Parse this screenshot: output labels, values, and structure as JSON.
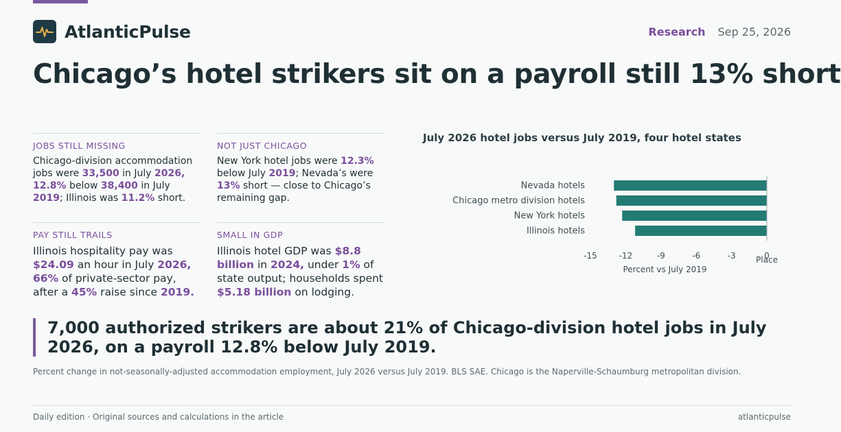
{
  "brand": {
    "name": "AtlanticPulse",
    "logo_icon": "pulse-icon"
  },
  "header": {
    "section": "Research",
    "date": "Sep 25, 2026"
  },
  "headline": "Chicago’s hotel strikers sit on a payroll still 13% short",
  "facts": [
    {
      "label": "JOBS STILL MISSING",
      "parts": [
        {
          "t": "Chicago-division accommodation jobs were "
        },
        {
          "t": "33,500",
          "h": true
        },
        {
          "t": " in July "
        },
        {
          "t": "2026,",
          "h": true
        },
        {
          "t": " "
        },
        {
          "t": "12.8%",
          "h": true
        },
        {
          "t": " below "
        },
        {
          "t": "38,400",
          "h": true
        },
        {
          "t": " in July "
        },
        {
          "t": "2019",
          "h": true
        },
        {
          "t": "; Illinois was "
        },
        {
          "t": "11.2%",
          "h": true
        },
        {
          "t": " short."
        }
      ]
    },
    {
      "label": "NOT JUST CHICAGO",
      "parts": [
        {
          "t": "New York hotel jobs were "
        },
        {
          "t": "12.3%",
          "h": true
        },
        {
          "t": " below July "
        },
        {
          "t": "2019",
          "h": true
        },
        {
          "t": "; Nevada’s were "
        },
        {
          "t": "13%",
          "h": true
        },
        {
          "t": " short — close to Chicago’s remaining gap."
        }
      ]
    },
    {
      "label": "PAY STILL TRAILS",
      "parts": [
        {
          "t": "Illinois hospitality pay was "
        },
        {
          "t": "$24.09",
          "h": true
        },
        {
          "t": " an hour in July "
        },
        {
          "t": "2026,",
          "h": true
        },
        {
          "t": " "
        },
        {
          "t": "66%",
          "h": true
        },
        {
          "t": " of private-sector pay, after a "
        },
        {
          "t": "45%",
          "h": true
        },
        {
          "t": " raise since "
        },
        {
          "t": "2019.",
          "h": true
        }
      ]
    },
    {
      "label": "SMALL IN GDP",
      "parts": [
        {
          "t": "Illinois hotel GDP was "
        },
        {
          "t": "$8.8 billion",
          "h": true
        },
        {
          "t": " in "
        },
        {
          "t": "2024,",
          "h": true
        },
        {
          "t": " under "
        },
        {
          "t": "1%",
          "h": true
        },
        {
          "t": " of state output; households spent "
        },
        {
          "t": "$5.18 billion",
          "h": true
        },
        {
          "t": " on lodging."
        }
      ]
    }
  ],
  "chart_data": {
    "type": "bar",
    "orientation": "horizontal",
    "title": "July 2026 hotel jobs versus July 2019, four hotel states",
    "categories": [
      "Nevada hotels",
      "Chicago metro division hotels",
      "New York hotels",
      "Illinois hotels"
    ],
    "values": [
      -13.0,
      -12.8,
      -12.3,
      -11.2
    ],
    "xlabel": "Percent vs July 2019",
    "ylabel": "Place",
    "xlim": [
      -15,
      0
    ],
    "xticks": [
      "-15",
      "-12",
      "-9",
      "-6",
      "-3",
      "0"
    ],
    "bar_color": "#237b74",
    "grid": false
  },
  "callout": "7,000 authorized strikers are about 21% of Chicago-division hotel jobs in July 2026, on a payroll 12.8% below July 2019.",
  "footnote": "Percent change in not-seasonally-adjusted accommodation employment, July 2026 versus July 2019. BLS SAE. Chicago is the Naperville-Schaumburg metropolitan division.",
  "footer": {
    "left": "Daily edition · Original sources and calculations in the article",
    "right": "atlanticpulse"
  },
  "colors": {
    "accent": "#7a5a9e",
    "highlight": "#7a4f9c",
    "bar": "#237b74",
    "ink": "#1f3035"
  }
}
